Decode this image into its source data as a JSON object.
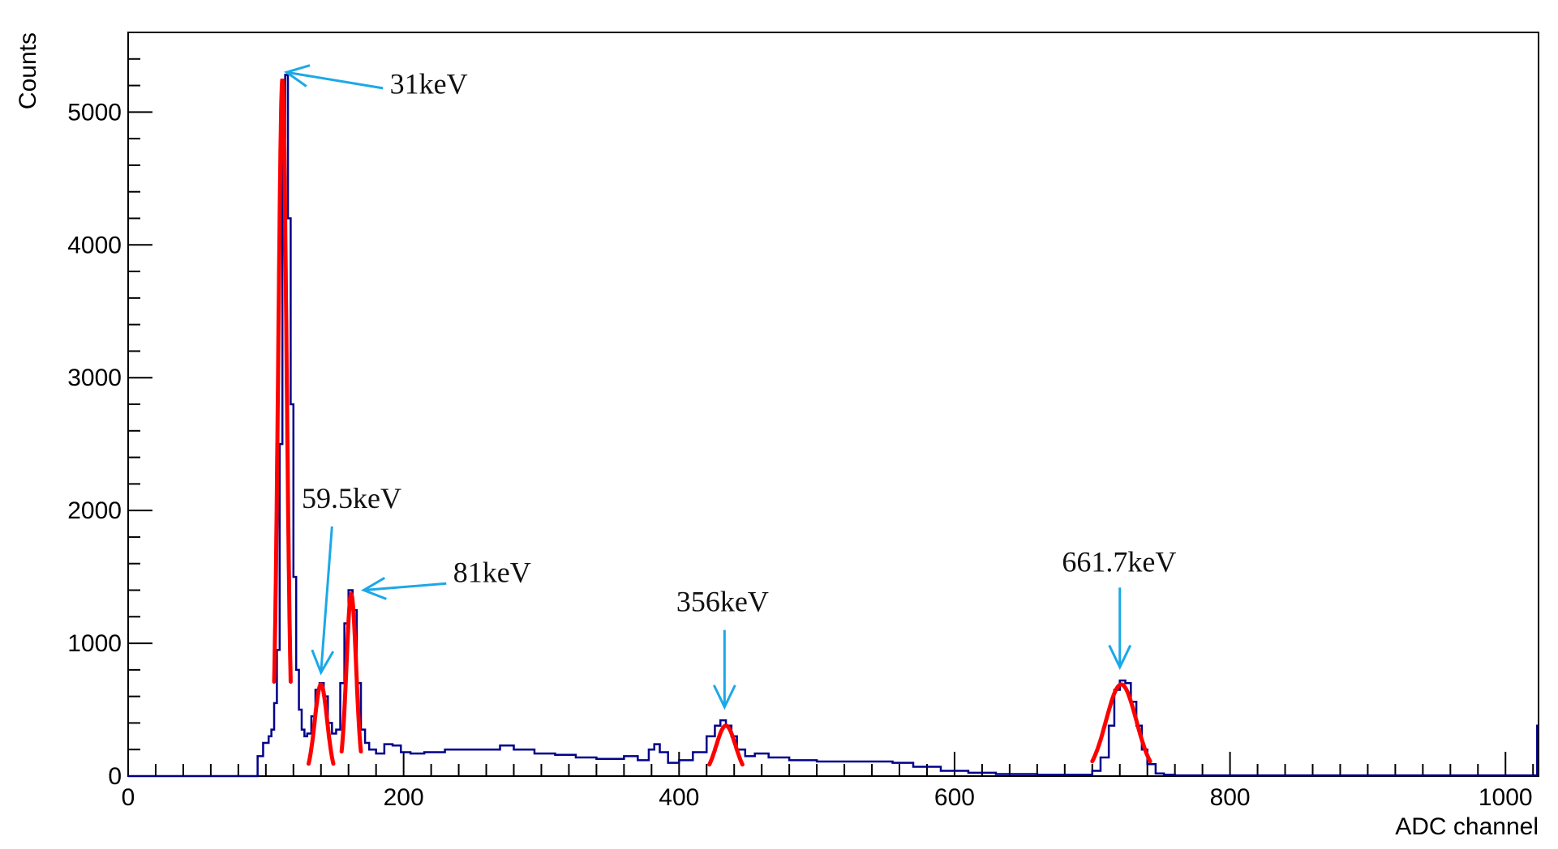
{
  "chart_data": {
    "type": "line",
    "xlabel": "ADC channel",
    "ylabel": "Counts",
    "xlim": [
      0,
      1024
    ],
    "ylim": [
      0,
      5600
    ],
    "grid": false,
    "x_ticks": [
      0,
      200,
      400,
      600,
      800,
      1000
    ],
    "y_ticks": [
      0,
      1000,
      2000,
      3000,
      4000,
      5000
    ],
    "x_tick_labels": [
      "0",
      "200",
      "400",
      "600",
      "800",
      "1000"
    ],
    "y_tick_labels": [
      "0",
      "1000",
      "2000",
      "3000",
      "4000",
      "5000"
    ],
    "colors": {
      "spectrum": "#00008B",
      "fit": "#FF0000",
      "arrow": "#1BA8E8"
    },
    "spectrum": {
      "x": [
        0,
        90,
        94,
        98,
        102,
        104,
        106,
        108,
        110,
        112,
        114,
        116,
        118,
        120,
        122,
        124,
        126,
        128,
        130,
        133,
        136,
        139,
        142,
        145,
        148,
        151,
        154,
        157,
        160,
        163,
        166,
        169,
        172,
        175,
        180,
        186,
        192,
        198,
        205,
        215,
        230,
        245,
        260,
        270,
        280,
        295,
        310,
        325,
        340,
        350,
        360,
        370,
        378,
        382,
        386,
        392,
        400,
        410,
        420,
        426,
        430,
        434,
        438,
        442,
        448,
        455,
        465,
        480,
        500,
        520,
        540,
        555,
        570,
        590,
        610,
        630,
        660,
        690,
        700,
        706,
        712,
        716,
        720,
        724,
        728,
        732,
        736,
        740,
        746,
        752,
        760,
        780,
        850,
        950,
        1020,
        1023
      ],
      "y": [
        0,
        0,
        150,
        250,
        300,
        350,
        550,
        950,
        2500,
        4800,
        5280,
        4200,
        2800,
        1500,
        800,
        500,
        350,
        300,
        320,
        450,
        650,
        700,
        600,
        400,
        320,
        350,
        700,
        1150,
        1400,
        1250,
        700,
        350,
        250,
        200,
        170,
        240,
        230,
        180,
        170,
        180,
        200,
        200,
        200,
        230,
        200,
        170,
        160,
        140,
        130,
        130,
        150,
        120,
        200,
        240,
        180,
        100,
        120,
        180,
        300,
        380,
        420,
        380,
        300,
        200,
        150,
        170,
        140,
        120,
        110,
        110,
        110,
        100,
        70,
        40,
        25,
        15,
        10,
        10,
        40,
        140,
        380,
        650,
        720,
        700,
        560,
        380,
        200,
        90,
        20,
        10,
        5,
        5,
        5,
        5,
        5,
        380
      ]
    },
    "fits": [
      {
        "mean": 112,
        "sigma": 3.0,
        "amplitude": 5250,
        "range": [
          106,
          118
        ]
      },
      {
        "mean": 140,
        "sigma": 4.5,
        "amplitude": 690,
        "range": [
          131,
          149
        ]
      },
      {
        "mean": 162,
        "sigma": 3.5,
        "amplitude": 1370,
        "range": [
          155,
          169
        ]
      },
      {
        "mean": 434,
        "sigma": 7.0,
        "amplitude": 380,
        "range": [
          422,
          446
        ]
      },
      {
        "mean": 721,
        "sigma": 11.0,
        "amplitude": 690,
        "range": [
          700,
          742
        ]
      }
    ],
    "annotations": [
      {
        "text": "31keV",
        "text_x": 190,
        "text_y": 5140,
        "arrow_from": [
          185,
          5180
        ],
        "arrow_to": [
          115,
          5300
        ]
      },
      {
        "text": "59.5keV",
        "text_x": 126,
        "text_y": 2020,
        "arrow_from": [
          148,
          1880
        ],
        "arrow_to": [
          140,
          780
        ]
      },
      {
        "text": "81keV",
        "text_x": 236,
        "text_y": 1460,
        "arrow_from": [
          231,
          1450
        ],
        "arrow_to": [
          171,
          1400
        ]
      },
      {
        "text": "356keV",
        "text_x": 398,
        "text_y": 1240,
        "arrow_from": [
          433,
          1100
        ],
        "arrow_to": [
          433,
          520
        ]
      },
      {
        "text": "661.7keV",
        "text_x": 678,
        "text_y": 1540,
        "arrow_from": [
          720,
          1420
        ],
        "arrow_to": [
          720,
          820
        ]
      }
    ]
  }
}
